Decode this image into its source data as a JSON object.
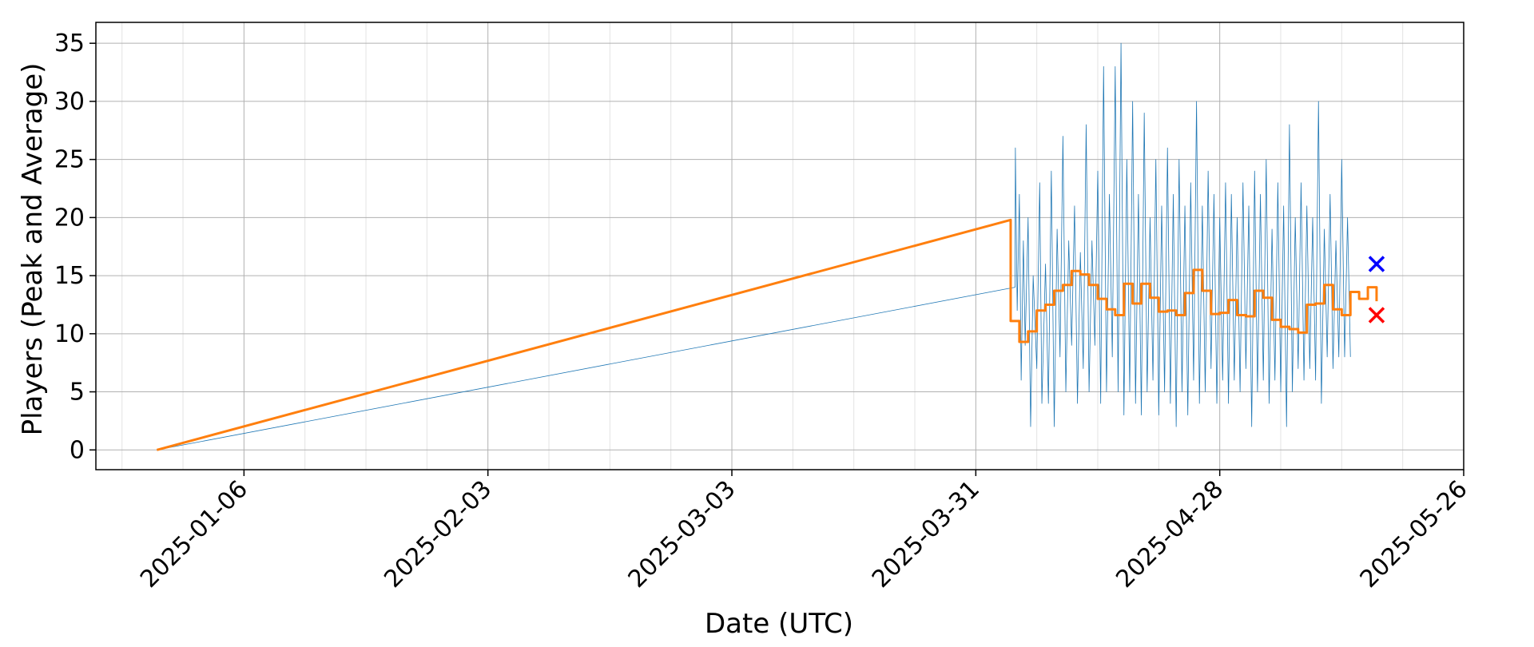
{
  "chart_data": {
    "type": "line",
    "xlabel": "Date (UTC)",
    "ylabel": "Players (Peak and Average)",
    "x_type": "date",
    "xlim": [
      "2024-12-20",
      "2025-05-26"
    ],
    "ylim": [
      -1.7,
      36.8
    ],
    "x_ticks": [
      "2025-01-06",
      "2025-02-03",
      "2025-03-03",
      "2025-03-31",
      "2025-04-28",
      "2025-05-26"
    ],
    "y_ticks": [
      0,
      5,
      10,
      15,
      20,
      25,
      30,
      35
    ],
    "grid": true,
    "colors": {
      "peak": "#1f77b4",
      "average": "#ff7f0e",
      "marker_peak": "#0000ff",
      "marker_average": "#ff0000"
    },
    "series": [
      {
        "style": "thin-line",
        "color": "#1f77b4",
        "points": [
          [
            "2024-12-27T00:00",
            0
          ],
          [
            "2025-04-04T12:00",
            14
          ],
          [
            "2025-04-04T13:00",
            26
          ],
          [
            "2025-04-04T18:00",
            12
          ],
          [
            "2025-04-05T00:00",
            22
          ],
          [
            "2025-04-05T05:00",
            6
          ],
          [
            "2025-04-05T11:00",
            18
          ],
          [
            "2025-04-05T16:00",
            9
          ],
          [
            "2025-04-06T00:00",
            20
          ],
          [
            "2025-04-06T07:00",
            2
          ],
          [
            "2025-04-06T14:00",
            15
          ],
          [
            "2025-04-07T00:00",
            7
          ],
          [
            "2025-04-07T08:00",
            23
          ],
          [
            "2025-04-07T14:00",
            4
          ],
          [
            "2025-04-08T00:00",
            16
          ],
          [
            "2025-04-08T08:00",
            4
          ],
          [
            "2025-04-08T16:00",
            24
          ],
          [
            "2025-04-09T00:00",
            2
          ],
          [
            "2025-04-09T08:00",
            19
          ],
          [
            "2025-04-09T16:00",
            8
          ],
          [
            "2025-04-10T00:00",
            27
          ],
          [
            "2025-04-10T08:00",
            5
          ],
          [
            "2025-04-10T16:00",
            18
          ],
          [
            "2025-04-11T00:00",
            9
          ],
          [
            "2025-04-11T08:00",
            21
          ],
          [
            "2025-04-11T16:00",
            4
          ],
          [
            "2025-04-12T00:00",
            17
          ],
          [
            "2025-04-12T08:00",
            7
          ],
          [
            "2025-04-12T16:00",
            28
          ],
          [
            "2025-04-13T00:00",
            5
          ],
          [
            "2025-04-13T08:00",
            18
          ],
          [
            "2025-04-13T16:00",
            9
          ],
          [
            "2025-04-14T00:00",
            24
          ],
          [
            "2025-04-14T08:00",
            4
          ],
          [
            "2025-04-14T16:00",
            33
          ],
          [
            "2025-04-15T00:00",
            5
          ],
          [
            "2025-04-15T08:00",
            22
          ],
          [
            "2025-04-15T16:00",
            8
          ],
          [
            "2025-04-16T00:00",
            33
          ],
          [
            "2025-04-16T08:00",
            5
          ],
          [
            "2025-04-16T16:00",
            35
          ],
          [
            "2025-04-17T00:00",
            3
          ],
          [
            "2025-04-17T08:00",
            25
          ],
          [
            "2025-04-17T16:00",
            5
          ],
          [
            "2025-04-18T00:00",
            30
          ],
          [
            "2025-04-18T08:00",
            4
          ],
          [
            "2025-04-18T16:00",
            22
          ],
          [
            "2025-04-19T00:00",
            3
          ],
          [
            "2025-04-19T08:00",
            29
          ],
          [
            "2025-04-19T16:00",
            5
          ],
          [
            "2025-04-20T00:00",
            20
          ],
          [
            "2025-04-20T08:00",
            6
          ],
          [
            "2025-04-20T16:00",
            25
          ],
          [
            "2025-04-21T00:00",
            3
          ],
          [
            "2025-04-21T08:00",
            21
          ],
          [
            "2025-04-21T16:00",
            5
          ],
          [
            "2025-04-22T00:00",
            26
          ],
          [
            "2025-04-22T08:00",
            4
          ],
          [
            "2025-04-22T16:00",
            22
          ],
          [
            "2025-04-23T00:00",
            2
          ],
          [
            "2025-04-23T08:00",
            25
          ],
          [
            "2025-04-23T16:00",
            5
          ],
          [
            "2025-04-24T00:00",
            21
          ],
          [
            "2025-04-24T08:00",
            3
          ],
          [
            "2025-04-24T16:00",
            23
          ],
          [
            "2025-04-25T00:00",
            6
          ],
          [
            "2025-04-25T08:00",
            30
          ],
          [
            "2025-04-25T16:00",
            4
          ],
          [
            "2025-04-26T00:00",
            21
          ],
          [
            "2025-04-26T08:00",
            5
          ],
          [
            "2025-04-26T16:00",
            24
          ],
          [
            "2025-04-27T00:00",
            7
          ],
          [
            "2025-04-27T08:00",
            22
          ],
          [
            "2025-04-27T16:00",
            4
          ],
          [
            "2025-04-28T00:00",
            20
          ],
          [
            "2025-04-28T08:00",
            6
          ],
          [
            "2025-04-28T16:00",
            23
          ],
          [
            "2025-04-29T00:00",
            4
          ],
          [
            "2025-04-29T08:00",
            22
          ],
          [
            "2025-04-29T16:00",
            6
          ],
          [
            "2025-04-30T00:00",
            20
          ],
          [
            "2025-04-30T08:00",
            5
          ],
          [
            "2025-04-30T16:00",
            23
          ],
          [
            "2025-05-01T00:00",
            7
          ],
          [
            "2025-05-01T08:00",
            21
          ],
          [
            "2025-05-01T16:00",
            2
          ],
          [
            "2025-05-02T00:00",
            24
          ],
          [
            "2025-05-02T08:00",
            5
          ],
          [
            "2025-05-02T16:00",
            22
          ],
          [
            "2025-05-03T00:00",
            6
          ],
          [
            "2025-05-03T08:00",
            25
          ],
          [
            "2025-05-03T16:00",
            4
          ],
          [
            "2025-05-04T00:00",
            19
          ],
          [
            "2025-05-04T08:00",
            6
          ],
          [
            "2025-05-04T16:00",
            23
          ],
          [
            "2025-05-05T00:00",
            5
          ],
          [
            "2025-05-05T08:00",
            21
          ],
          [
            "2025-05-05T16:00",
            2
          ],
          [
            "2025-05-06T00:00",
            28
          ],
          [
            "2025-05-06T08:00",
            5
          ],
          [
            "2025-05-06T16:00",
            20
          ],
          [
            "2025-05-07T00:00",
            7
          ],
          [
            "2025-05-07T08:00",
            23
          ],
          [
            "2025-05-07T16:00",
            6
          ],
          [
            "2025-05-08T00:00",
            21
          ],
          [
            "2025-05-08T08:00",
            7
          ],
          [
            "2025-05-08T16:00",
            20
          ],
          [
            "2025-05-09T00:00",
            6
          ],
          [
            "2025-05-09T08:00",
            30
          ],
          [
            "2025-05-09T16:00",
            4
          ],
          [
            "2025-05-10T00:00",
            19
          ],
          [
            "2025-05-10T08:00",
            8
          ],
          [
            "2025-05-10T16:00",
            22
          ],
          [
            "2025-05-11T00:00",
            7
          ],
          [
            "2025-05-11T08:00",
            18
          ],
          [
            "2025-05-11T16:00",
            8
          ],
          [
            "2025-05-12T00:00",
            25
          ],
          [
            "2025-05-12T08:00",
            8
          ],
          [
            "2025-05-12T16:00",
            20
          ],
          [
            "2025-05-13T00:00",
            8
          ]
        ]
      },
      {
        "style": "step",
        "color": "#ff7f0e",
        "points": [
          [
            "2024-12-27",
            0
          ],
          [
            "2025-04-04",
            19.8
          ],
          [
            "2025-04-04",
            11.1
          ],
          [
            "2025-04-05",
            11.1
          ],
          [
            "2025-04-05",
            9.3
          ],
          [
            "2025-04-06",
            9.3
          ],
          [
            "2025-04-06",
            10.2
          ],
          [
            "2025-04-07",
            10.2
          ],
          [
            "2025-04-07",
            12.0
          ],
          [
            "2025-04-08",
            12.0
          ],
          [
            "2025-04-08",
            12.5
          ],
          [
            "2025-04-09",
            12.5
          ],
          [
            "2025-04-09",
            13.7
          ],
          [
            "2025-04-10",
            13.7
          ],
          [
            "2025-04-10",
            14.2
          ],
          [
            "2025-04-11",
            14.2
          ],
          [
            "2025-04-11",
            15.4
          ],
          [
            "2025-04-12",
            15.4
          ],
          [
            "2025-04-12",
            15.1
          ],
          [
            "2025-04-13",
            15.1
          ],
          [
            "2025-04-13",
            14.2
          ],
          [
            "2025-04-14",
            14.2
          ],
          [
            "2025-04-14",
            13.0
          ],
          [
            "2025-04-15",
            13.0
          ],
          [
            "2025-04-15",
            12.1
          ],
          [
            "2025-04-16",
            12.1
          ],
          [
            "2025-04-16",
            11.6
          ],
          [
            "2025-04-17",
            11.6
          ],
          [
            "2025-04-17",
            14.3
          ],
          [
            "2025-04-18",
            14.3
          ],
          [
            "2025-04-18",
            12.6
          ],
          [
            "2025-04-19",
            12.6
          ],
          [
            "2025-04-19",
            14.3
          ],
          [
            "2025-04-20",
            14.3
          ],
          [
            "2025-04-20",
            13.1
          ],
          [
            "2025-04-21",
            13.1
          ],
          [
            "2025-04-21",
            11.9
          ],
          [
            "2025-04-22",
            11.9
          ],
          [
            "2025-04-22",
            12.0
          ],
          [
            "2025-04-23",
            12.0
          ],
          [
            "2025-04-23",
            11.6
          ],
          [
            "2025-04-24",
            11.6
          ],
          [
            "2025-04-24",
            13.5
          ],
          [
            "2025-04-25",
            13.5
          ],
          [
            "2025-04-25",
            15.5
          ],
          [
            "2025-04-26",
            15.5
          ],
          [
            "2025-04-26",
            13.7
          ],
          [
            "2025-04-27",
            13.7
          ],
          [
            "2025-04-27",
            11.7
          ],
          [
            "2025-04-28",
            11.7
          ],
          [
            "2025-04-28",
            11.8
          ],
          [
            "2025-04-29",
            11.8
          ],
          [
            "2025-04-29",
            12.9
          ],
          [
            "2025-04-30",
            12.9
          ],
          [
            "2025-04-30",
            11.6
          ],
          [
            "2025-05-01",
            11.6
          ],
          [
            "2025-05-01",
            11.5
          ],
          [
            "2025-05-02",
            11.5
          ],
          [
            "2025-05-02",
            13.7
          ],
          [
            "2025-05-03",
            13.7
          ],
          [
            "2025-05-03",
            13.1
          ],
          [
            "2025-05-04",
            13.1
          ],
          [
            "2025-05-04",
            11.2
          ],
          [
            "2025-05-05",
            11.2
          ],
          [
            "2025-05-05",
            10.6
          ],
          [
            "2025-05-06",
            10.6
          ],
          [
            "2025-05-06",
            10.4
          ],
          [
            "2025-05-07",
            10.4
          ],
          [
            "2025-05-07",
            10.1
          ],
          [
            "2025-05-08",
            10.1
          ],
          [
            "2025-05-08",
            12.5
          ],
          [
            "2025-05-09",
            12.5
          ],
          [
            "2025-05-09",
            12.6
          ],
          [
            "2025-05-10",
            12.6
          ],
          [
            "2025-05-10",
            14.2
          ],
          [
            "2025-05-11",
            14.2
          ],
          [
            "2025-05-11",
            12.1
          ],
          [
            "2025-05-12",
            12.1
          ],
          [
            "2025-05-12",
            11.6
          ],
          [
            "2025-05-13",
            11.6
          ],
          [
            "2025-05-13",
            13.6
          ],
          [
            "2025-05-14",
            13.6
          ],
          [
            "2025-05-14",
            13.0
          ],
          [
            "2025-05-15",
            13.0
          ],
          [
            "2025-05-15",
            14.0
          ],
          [
            "2025-05-16",
            14.0
          ],
          [
            "2025-05-16",
            12.8
          ]
        ]
      }
    ],
    "markers": [
      {
        "date": "2025-05-16",
        "y": 16.0,
        "color": "#0000ff",
        "shape": "x"
      },
      {
        "date": "2025-05-16",
        "y": 11.6,
        "color": "#ff0000",
        "shape": "x"
      }
    ]
  }
}
